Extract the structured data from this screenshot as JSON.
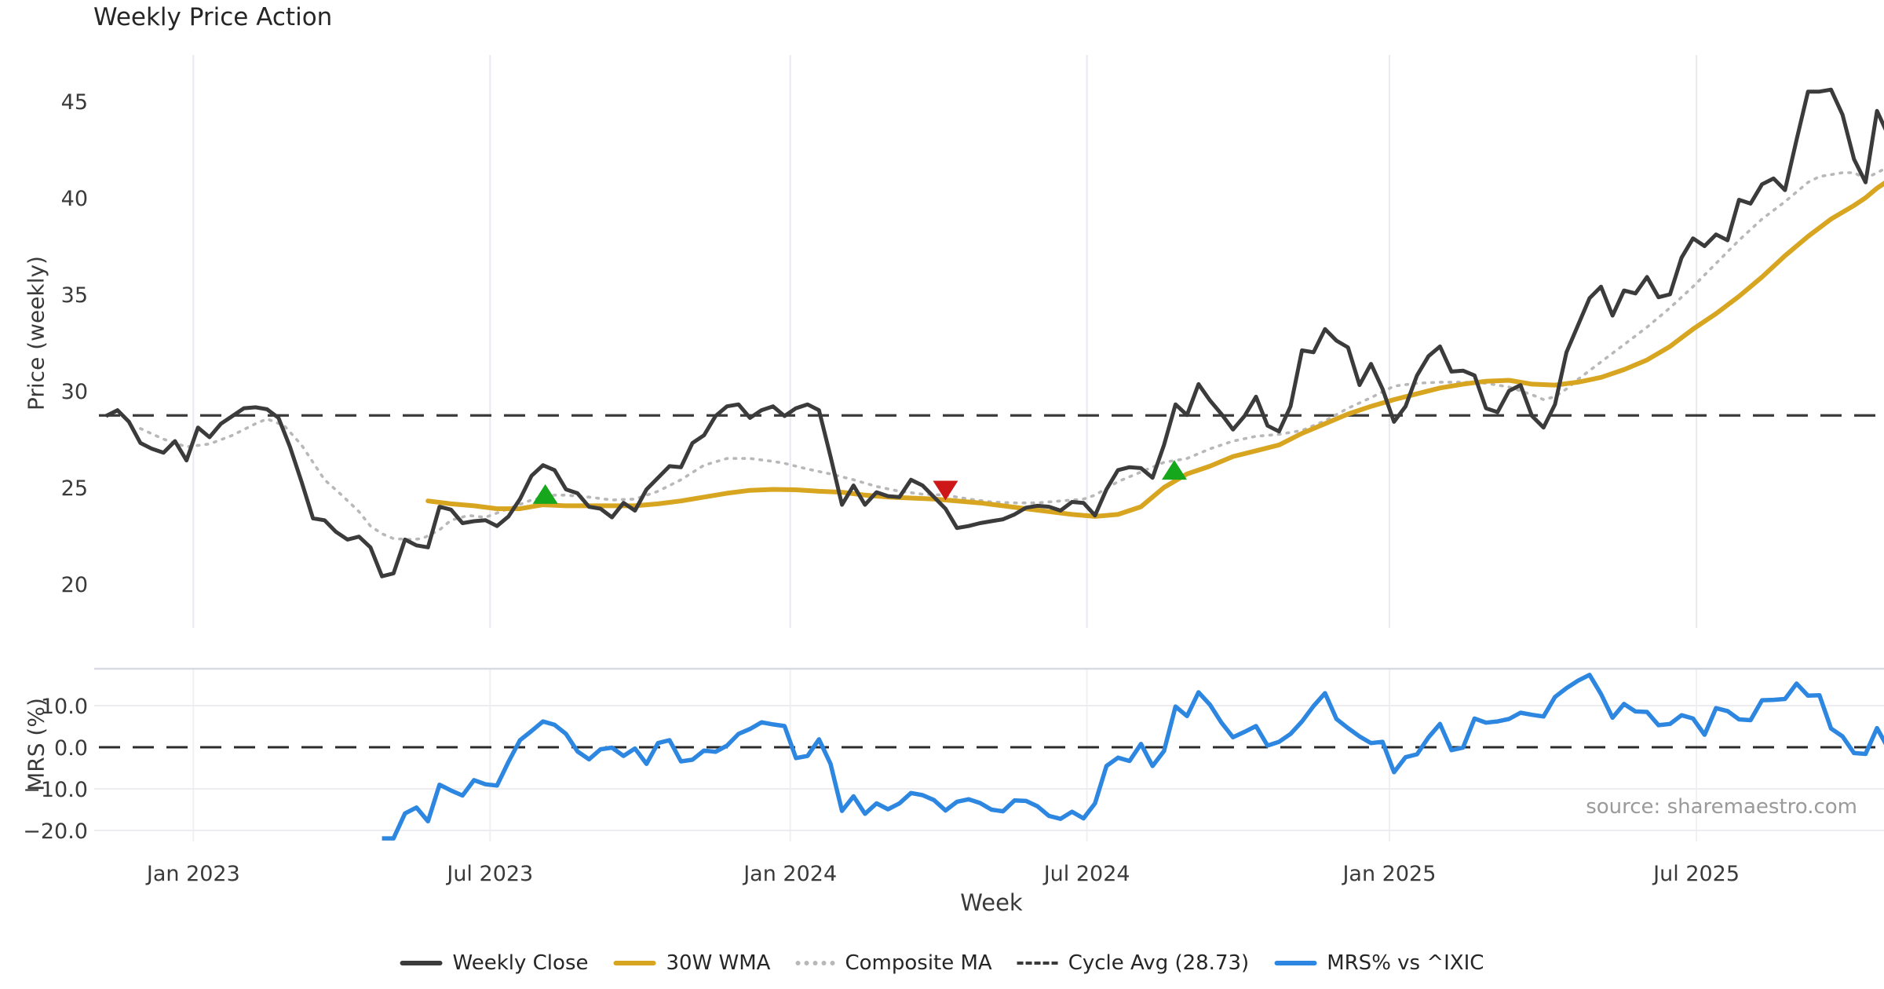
{
  "chart_data": {
    "type": "line",
    "title": "Weekly Price Action",
    "xlabel": "Week",
    "source": "source: sharemaestro.com",
    "x_ticks": [
      {
        "week": 7.6,
        "label": "Jan 2023"
      },
      {
        "week": 33.4,
        "label": "Jul 2023"
      },
      {
        "week": 59.5,
        "label": "Jan 2024"
      },
      {
        "week": 85.3,
        "label": "Jul 2024"
      },
      {
        "week": 111.6,
        "label": "Jan 2025"
      },
      {
        "week": 138.3,
        "label": "Jul 2025"
      }
    ],
    "colors": {
      "close": "#3b3b3b",
      "wma": "#d7a51f",
      "composite": "#b8b8b8",
      "cycle": "#3a3a3a",
      "mrs": "#2d87e0",
      "buy": "#16a71c",
      "sell": "#cd1719",
      "grid": "#e9e9ef",
      "panel_border": "#d9dbe3"
    },
    "price_panel": {
      "ylabel": "Price (weekly)",
      "yticks": [
        {
          "value": 20,
          "label": "20"
        },
        {
          "value": 25,
          "label": "25"
        },
        {
          "value": 30,
          "label": "30"
        },
        {
          "value": 35,
          "label": "35"
        },
        {
          "value": 40,
          "label": "40"
        },
        {
          "value": 45,
          "label": "45"
        }
      ],
      "cycle_avg": {
        "value": 28.73,
        "label": "Cycle Avg (28.73)"
      },
      "weekly_close": {
        "name": "Weekly Close",
        "start_week": 0,
        "values": [
          28.7,
          29.0,
          28.4,
          27.3,
          27.0,
          26.8,
          27.4,
          26.4,
          28.1,
          27.6,
          28.3,
          28.7,
          29.1,
          29.15,
          29.05,
          28.6,
          27.1,
          25.3,
          23.4,
          23.3,
          22.7,
          22.3,
          22.45,
          21.9,
          20.4,
          20.55,
          22.3,
          22.0,
          21.9,
          24.0,
          23.85,
          23.15,
          23.25,
          23.3,
          23.0,
          23.5,
          24.4,
          25.6,
          26.15,
          25.9,
          24.9,
          24.7,
          24.0,
          23.9,
          23.45,
          24.2,
          23.8,
          24.9,
          25.5,
          26.1,
          26.05,
          27.3,
          27.7,
          28.7,
          29.2,
          29.3,
          28.6,
          29.0,
          29.2,
          28.7,
          29.1,
          29.3,
          29.0,
          26.6,
          24.1,
          25.1,
          24.1,
          24.75,
          24.55,
          24.5,
          25.4,
          25.1,
          24.5,
          23.9,
          22.9,
          23.0,
          23.15,
          23.25,
          23.35,
          23.6,
          23.95,
          24.05,
          24.0,
          23.8,
          24.25,
          24.2,
          23.55,
          24.9,
          25.9,
          26.05,
          26.0,
          25.5,
          27.2,
          29.3,
          28.75,
          30.35,
          29.5,
          28.8,
          28.0,
          28.7,
          29.7,
          28.2,
          27.9,
          29.2,
          32.1,
          32.0,
          33.2,
          32.6,
          32.25,
          30.3,
          31.4,
          30.1,
          28.4,
          29.2,
          30.8,
          31.8,
          32.3,
          31.0,
          31.05,
          30.8,
          29.1,
          28.9,
          30.0,
          30.3,
          28.7,
          28.1,
          29.3,
          32.0,
          33.4,
          34.8,
          35.4,
          33.9,
          35.2,
          35.05,
          35.9,
          34.85,
          35.0,
          36.9,
          37.9,
          37.5,
          38.1,
          37.8,
          39.9,
          39.7,
          40.7,
          41.0,
          40.4,
          43.0,
          45.5,
          45.5,
          45.6,
          44.3,
          42.0,
          40.8,
          44.5,
          43.2
        ]
      },
      "wma30": {
        "name": "30W WMA",
        "points": [
          [
            28,
            24.3
          ],
          [
            30,
            24.15
          ],
          [
            32,
            24.05
          ],
          [
            34,
            23.9
          ],
          [
            36,
            23.9
          ],
          [
            38,
            24.1
          ],
          [
            40,
            24.05
          ],
          [
            42,
            24.05
          ],
          [
            44,
            24.05
          ],
          [
            46,
            24.05
          ],
          [
            48,
            24.15
          ],
          [
            50,
            24.3
          ],
          [
            52,
            24.5
          ],
          [
            54,
            24.7
          ],
          [
            56,
            24.85
          ],
          [
            58,
            24.9
          ],
          [
            60,
            24.88
          ],
          [
            62,
            24.8
          ],
          [
            64,
            24.75
          ],
          [
            66,
            24.6
          ],
          [
            68,
            24.5
          ],
          [
            70,
            24.45
          ],
          [
            72,
            24.4
          ],
          [
            74,
            24.3
          ],
          [
            76,
            24.2
          ],
          [
            78,
            24.05
          ],
          [
            80,
            23.9
          ],
          [
            82,
            23.75
          ],
          [
            84,
            23.6
          ],
          [
            86,
            23.5
          ],
          [
            88,
            23.6
          ],
          [
            90,
            24.0
          ],
          [
            92,
            25.0
          ],
          [
            94,
            25.7
          ],
          [
            96,
            26.1
          ],
          [
            98,
            26.6
          ],
          [
            100,
            26.9
          ],
          [
            102,
            27.2
          ],
          [
            104,
            27.8
          ],
          [
            106,
            28.3
          ],
          [
            108,
            28.8
          ],
          [
            110,
            29.2
          ],
          [
            112,
            29.55
          ],
          [
            114,
            29.85
          ],
          [
            116,
            30.15
          ],
          [
            118,
            30.35
          ],
          [
            120,
            30.5
          ],
          [
            122,
            30.55
          ],
          [
            124,
            30.35
          ],
          [
            126,
            30.3
          ],
          [
            128,
            30.45
          ],
          [
            130,
            30.7
          ],
          [
            132,
            31.1
          ],
          [
            134,
            31.6
          ],
          [
            136,
            32.3
          ],
          [
            138,
            33.2
          ],
          [
            140,
            34.0
          ],
          [
            142,
            34.9
          ],
          [
            144,
            35.9
          ],
          [
            146,
            37.0
          ],
          [
            148,
            38.0
          ],
          [
            150,
            38.9
          ],
          [
            152,
            39.6
          ],
          [
            153,
            40.0
          ],
          [
            154,
            40.5
          ],
          [
            155,
            40.9
          ]
        ]
      },
      "composite_ma": {
        "name": "Composite MA",
        "points": [
          [
            3,
            28.05
          ],
          [
            5,
            27.5
          ],
          [
            7,
            27.1
          ],
          [
            9,
            27.25
          ],
          [
            11,
            27.7
          ],
          [
            13,
            28.3
          ],
          [
            14,
            28.55
          ],
          [
            15.5,
            28.2
          ],
          [
            17,
            27.2
          ],
          [
            18,
            26.3
          ],
          [
            19,
            25.4
          ],
          [
            20.5,
            24.6
          ],
          [
            22,
            23.75
          ],
          [
            23,
            23.0
          ],
          [
            24,
            22.6
          ],
          [
            25,
            22.35
          ],
          [
            26.5,
            22.3
          ],
          [
            27.5,
            22.35
          ],
          [
            29,
            22.8
          ],
          [
            30,
            23.3
          ],
          [
            31.5,
            23.55
          ],
          [
            33,
            23.45
          ],
          [
            35,
            23.9
          ],
          [
            37,
            24.35
          ],
          [
            39,
            24.6
          ],
          [
            40,
            24.6
          ],
          [
            42,
            24.5
          ],
          [
            44,
            24.35
          ],
          [
            46,
            24.4
          ],
          [
            48,
            24.8
          ],
          [
            50,
            25.4
          ],
          [
            52,
            26.15
          ],
          [
            54,
            26.5
          ],
          [
            56,
            26.5
          ],
          [
            58,
            26.35
          ],
          [
            59,
            26.25
          ],
          [
            61,
            25.95
          ],
          [
            63,
            25.7
          ],
          [
            65,
            25.4
          ],
          [
            67,
            25.05
          ],
          [
            69,
            24.8
          ],
          [
            71,
            24.65
          ],
          [
            73,
            24.6
          ],
          [
            75,
            24.4
          ],
          [
            77,
            24.25
          ],
          [
            79,
            24.2
          ],
          [
            81,
            24.2
          ],
          [
            83,
            24.3
          ],
          [
            85,
            24.4
          ],
          [
            86,
            24.6
          ],
          [
            88,
            25.3
          ],
          [
            90,
            25.8
          ],
          [
            92,
            26.3
          ],
          [
            93,
            26.4
          ],
          [
            94,
            26.5
          ],
          [
            96,
            27.0
          ],
          [
            98,
            27.4
          ],
          [
            100,
            27.65
          ],
          [
            102,
            27.75
          ],
          [
            104,
            27.95
          ],
          [
            106,
            28.45
          ],
          [
            108,
            29.1
          ],
          [
            110,
            29.65
          ],
          [
            112,
            30.25
          ],
          [
            114,
            30.4
          ],
          [
            116,
            30.45
          ],
          [
            118,
            30.45
          ],
          [
            120,
            30.4
          ],
          [
            122,
            30.2
          ],
          [
            124,
            29.8
          ],
          [
            125,
            29.55
          ],
          [
            126,
            29.7
          ],
          [
            127,
            30.1
          ],
          [
            128,
            30.6
          ],
          [
            130,
            31.5
          ],
          [
            132,
            32.4
          ],
          [
            134,
            33.3
          ],
          [
            136,
            34.3
          ],
          [
            138,
            35.4
          ],
          [
            140,
            36.6
          ],
          [
            142,
            37.8
          ],
          [
            144,
            38.9
          ],
          [
            146,
            39.8
          ],
          [
            147,
            40.3
          ],
          [
            148,
            40.8
          ],
          [
            149,
            41.1
          ],
          [
            150,
            41.2
          ],
          [
            151,
            41.3
          ],
          [
            152,
            41.3
          ],
          [
            153,
            41.0
          ],
          [
            154,
            41.3
          ],
          [
            155,
            41.6
          ]
        ]
      },
      "markers": [
        {
          "week": 38.2,
          "price": 24.6,
          "direction": "up"
        },
        {
          "week": 73.0,
          "price": 24.9,
          "direction": "down"
        },
        {
          "week": 92.9,
          "price": 25.85,
          "direction": "up"
        }
      ]
    },
    "mrs_panel": {
      "ylabel": "MRS (%)",
      "yticks": [
        {
          "value": 10,
          "label": "10.0"
        },
        {
          "value": 0,
          "label": "0.0"
        },
        {
          "value": -10,
          "label": "−10.0"
        },
        {
          "value": -20,
          "label": "−20.0"
        }
      ],
      "zero_line": 0,
      "mrs": {
        "name": "MRS% vs ^IXIC",
        "start_week": 24,
        "values": [
          -21.9,
          -21.9,
          -15.9,
          -14.5,
          -17.8,
          -9.0,
          -10.4,
          -11.6,
          -7.9,
          -8.9,
          -9.2,
          -3.5,
          1.7,
          3.9,
          6.2,
          5.4,
          3.2,
          -1.0,
          -2.9,
          -0.5,
          -0.1,
          -2.1,
          -0.3,
          -4.0,
          1.0,
          1.7,
          -3.4,
          -3.0,
          -0.8,
          -1.1,
          0.4,
          3.2,
          4.4,
          6.0,
          5.5,
          5.1,
          -2.6,
          -2.1,
          1.9,
          -4.0,
          -15.3,
          -11.8,
          -16.0,
          -13.5,
          -14.9,
          -13.5,
          -11.0,
          -11.5,
          -12.7,
          -15.2,
          -13.1,
          -12.5,
          -13.4,
          -15.0,
          -15.4,
          -12.8,
          -12.9,
          -14.2,
          -16.5,
          -17.2,
          -15.5,
          -17.1,
          -13.5,
          -4.5,
          -2.5,
          -3.3,
          0.8,
          -4.5,
          -0.9,
          9.8,
          7.5,
          13.2,
          10.2,
          5.9,
          2.4,
          3.7,
          5.1,
          0.4,
          1.3,
          3.2,
          6.2,
          9.9,
          13.0,
          6.8,
          4.6,
          2.6,
          1.0,
          1.3,
          -6.0,
          -2.4,
          -1.7,
          2.4,
          5.6,
          -0.7,
          -0.1,
          6.9,
          5.9,
          6.2,
          6.8,
          8.3,
          7.8,
          7.4,
          12.1,
          14.2,
          16.0,
          17.4,
          12.8,
          7.1,
          10.4,
          8.6,
          8.5,
          5.3,
          5.6,
          7.7,
          6.9,
          3.0,
          9.4,
          8.7,
          6.7,
          6.5,
          11.3,
          11.4,
          11.6,
          15.3,
          12.4,
          12.5,
          4.5,
          2.6,
          -1.4,
          -1.6,
          4.6,
          -0.4
        ]
      }
    }
  },
  "legend": {
    "items": [
      {
        "label": "Weekly Close"
      },
      {
        "label": "30W WMA"
      },
      {
        "label": "Composite MA"
      },
      {
        "label": "Cycle Avg (28.73)"
      },
      {
        "label": "MRS% vs ^IXIC"
      }
    ]
  }
}
